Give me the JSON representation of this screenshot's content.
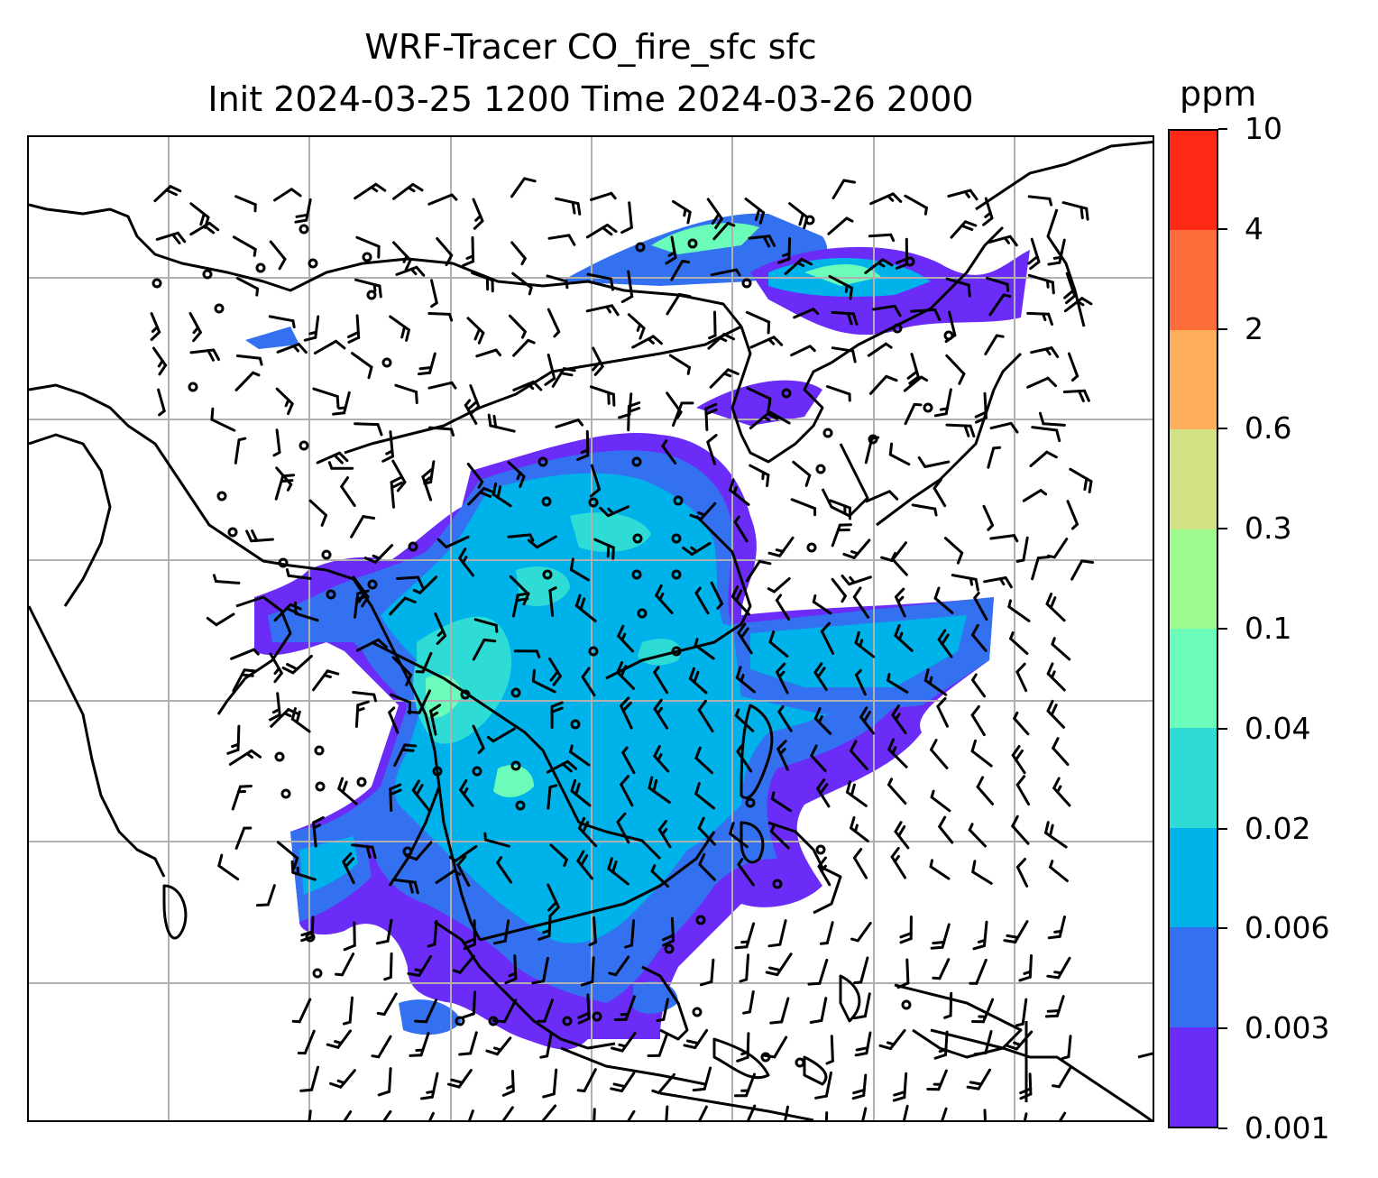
{
  "title": {
    "line1": "WRF-Tracer CO_fire_sfc sfc",
    "line2": "Init 2024-03-25 1200 Time 2024-03-26 2000"
  },
  "colorbar": {
    "unit": "ppm",
    "levels": [
      "0.001",
      "0.003",
      "0.006",
      "0.02",
      "0.04",
      "0.1",
      "0.3",
      "0.6",
      "2",
      "4",
      "10"
    ],
    "colors": [
      "#6a2cf6",
      "#3371f0",
      "#00b2ea",
      "#2fdcd5",
      "#6afcb8",
      "#9ef98f",
      "#d1e284",
      "#ffae5c",
      "#ff6d3a",
      "#ff2a16"
    ]
  },
  "map": {
    "gridlines": true,
    "coastline_color": "#000000",
    "symbols": "wind barbs and calm circles"
  }
}
